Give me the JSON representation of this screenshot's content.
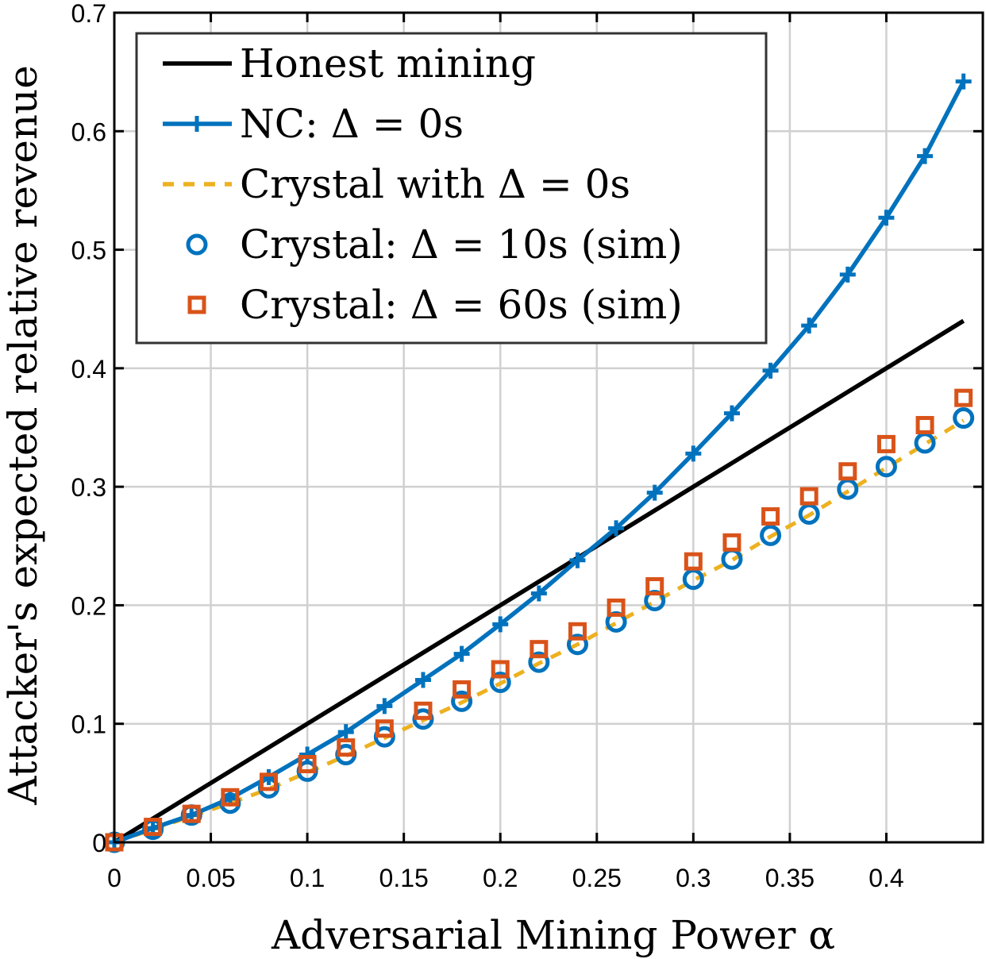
{
  "chart_data": {
    "type": "line",
    "xlabel": "Adversarial Mining Power α",
    "ylabel": "Attacker's expected relative revenue",
    "xlim": [
      0,
      0.45
    ],
    "ylim": [
      0,
      0.7
    ],
    "xticks": [
      "0",
      "0.05",
      "0.1",
      "0.15",
      "0.2",
      "0.25",
      "0.3",
      "0.35",
      "0.4"
    ],
    "xtick_values": [
      0,
      0.05,
      0.1,
      0.15,
      0.2,
      0.25,
      0.3,
      0.35,
      0.4
    ],
    "yticks": [
      "0",
      "0.1",
      "0.2",
      "0.3",
      "0.4",
      "0.5",
      "0.6",
      "0.7"
    ],
    "ytick_values": [
      0,
      0.1,
      0.2,
      0.3,
      0.4,
      0.5,
      0.6,
      0.7
    ],
    "grid": true,
    "legend_placement": "top-left",
    "x": [
      0,
      0.02,
      0.04,
      0.06,
      0.08,
      0.1,
      0.12,
      0.14,
      0.16,
      0.18,
      0.2,
      0.22,
      0.24,
      0.26,
      0.28,
      0.3,
      0.32,
      0.34,
      0.36,
      0.38,
      0.4,
      0.42,
      0.44
    ],
    "series": [
      {
        "name": "Honest mining",
        "style": "solid",
        "marker": "none",
        "color": "#000000",
        "values": [
          0,
          0.02,
          0.04,
          0.06,
          0.08,
          0.1,
          0.12,
          0.14,
          0.16,
          0.18,
          0.2,
          0.22,
          0.24,
          0.26,
          0.28,
          0.3,
          0.32,
          0.34,
          0.36,
          0.38,
          0.4,
          0.42,
          0.44
        ]
      },
      {
        "name": "NC: Δ = 0s",
        "style": "solid",
        "marker": "plus",
        "color": "#0072BD",
        "values": [
          0,
          0.012,
          0.023,
          0.037,
          0.055,
          0.074,
          0.093,
          0.115,
          0.137,
          0.159,
          0.184,
          0.21,
          0.238,
          0.265,
          0.295,
          0.328,
          0.362,
          0.398,
          0.436,
          0.479,
          0.527,
          0.579,
          0.642
        ]
      },
      {
        "name": "Crystal with Δ = 0s",
        "style": "dashed",
        "marker": "none",
        "color": "#EDB120",
        "values": [
          0,
          0.011,
          0.022,
          0.033,
          0.045,
          0.059,
          0.073,
          0.088,
          0.103,
          0.118,
          0.134,
          0.151,
          0.167,
          0.185,
          0.203,
          0.221,
          0.238,
          0.258,
          0.276,
          0.296,
          0.316,
          0.336,
          0.356
        ]
      },
      {
        "name": "Crystal: Δ = 10s (sim)",
        "style": "none",
        "marker": "circle",
        "color": "#0072BD",
        "values": [
          0,
          0.011,
          0.023,
          0.033,
          0.046,
          0.06,
          0.074,
          0.089,
          0.104,
          0.119,
          0.135,
          0.152,
          0.167,
          0.186,
          0.204,
          0.222,
          0.239,
          0.259,
          0.277,
          0.298,
          0.317,
          0.337,
          0.358
        ]
      },
      {
        "name": "Crystal: Δ = 60s (sim)",
        "style": "none",
        "marker": "square",
        "color": "#D95319",
        "values": [
          0,
          0.013,
          0.024,
          0.038,
          0.051,
          0.066,
          0.08,
          0.096,
          0.111,
          0.129,
          0.146,
          0.163,
          0.178,
          0.198,
          0.216,
          0.237,
          0.253,
          0.275,
          0.292,
          0.313,
          0.336,
          0.352,
          0.375
        ]
      }
    ]
  }
}
